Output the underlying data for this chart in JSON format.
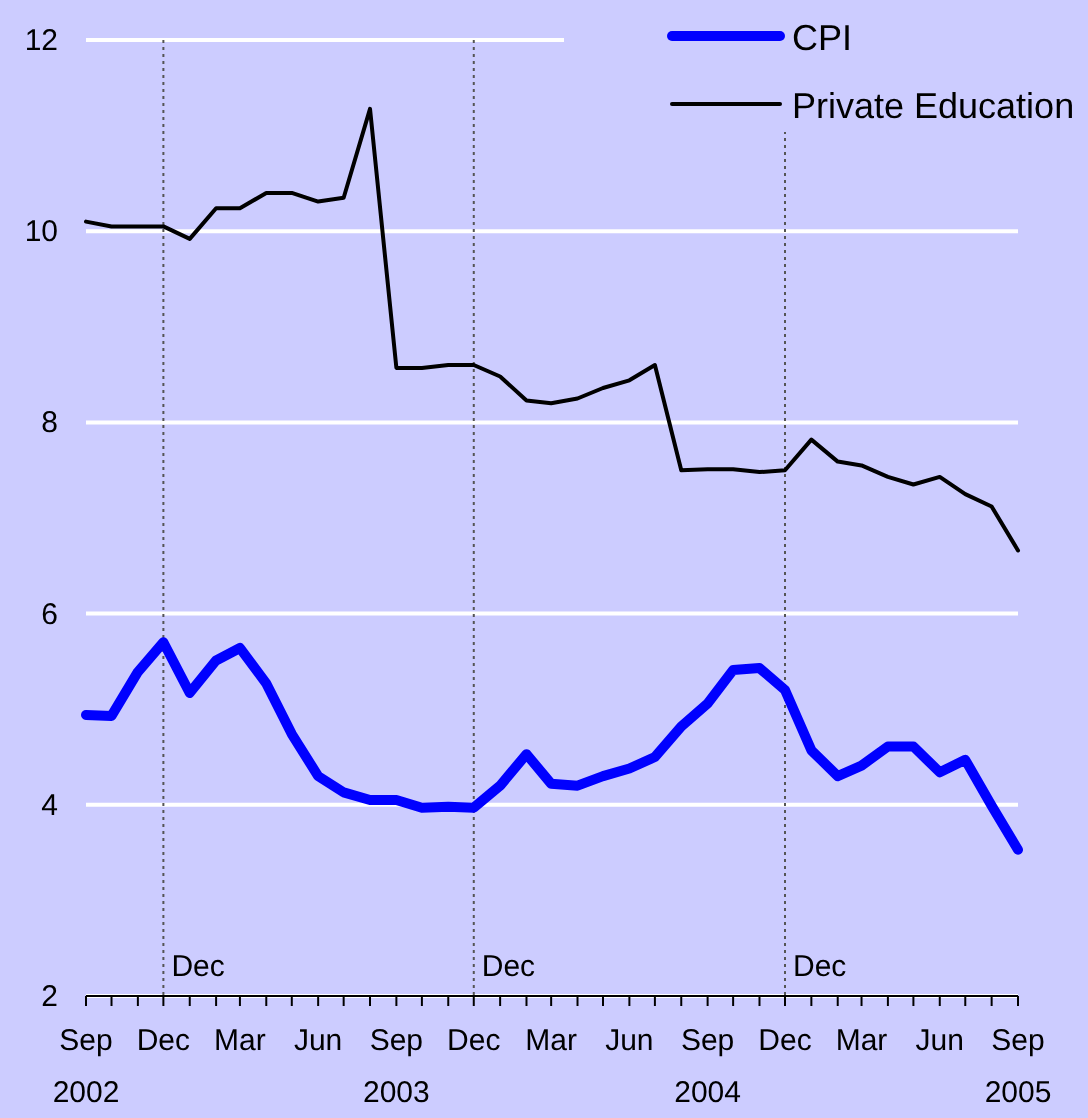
{
  "chart_data": {
    "type": "line",
    "x": [
      "2002-09",
      "2002-10",
      "2002-11",
      "2002-12",
      "2003-01",
      "2003-02",
      "2003-03",
      "2003-04",
      "2003-05",
      "2003-06",
      "2003-07",
      "2003-08",
      "2003-09",
      "2003-10",
      "2003-11",
      "2003-12",
      "2004-01",
      "2004-02",
      "2004-03",
      "2004-04",
      "2004-05",
      "2004-06",
      "2004-07",
      "2004-08",
      "2004-09",
      "2004-10",
      "2004-11",
      "2004-12",
      "2005-01",
      "2005-02",
      "2005-03",
      "2005-04",
      "2005-05",
      "2005-06",
      "2005-07",
      "2005-08",
      "2005-09"
    ],
    "series": [
      {
        "name": "CPI",
        "color": "#0000ff",
        "values": [
          4.94,
          4.93,
          5.39,
          5.7,
          5.17,
          5.51,
          5.64,
          5.27,
          4.74,
          4.3,
          4.13,
          4.05,
          4.05,
          3.97,
          3.98,
          3.97,
          4.2,
          4.53,
          4.22,
          4.2,
          4.3,
          4.38,
          4.5,
          4.82,
          5.06,
          5.41,
          5.43,
          5.2,
          4.57,
          4.3,
          4.41,
          4.61,
          4.61,
          4.34,
          4.47,
          3.99,
          3.53
        ]
      },
      {
        "name": "Private Education",
        "color": "#000000",
        "values": [
          10.1,
          10.05,
          10.05,
          10.05,
          9.92,
          10.24,
          10.24,
          10.4,
          10.4,
          10.31,
          10.35,
          11.28,
          8.57,
          8.57,
          8.6,
          8.6,
          8.48,
          8.23,
          8.2,
          8.25,
          8.36,
          8.44,
          8.6,
          7.5,
          7.51,
          7.51,
          7.48,
          7.5,
          7.82,
          7.59,
          7.55,
          7.43,
          7.35,
          7.43,
          7.25,
          7.12,
          6.66
        ]
      }
    ],
    "xlim": [
      "2002-09",
      "2005-09"
    ],
    "xticks": [
      {
        "value": "2002-09",
        "label": "Sep 2002"
      },
      {
        "value": "2002-10",
        "label": null
      },
      {
        "value": "2002-11",
        "label": null
      },
      {
        "value": "2002-12",
        "label": "Dec"
      },
      {
        "value": "2003-01",
        "label": null
      },
      {
        "value": "2003-02",
        "label": null
      },
      {
        "value": "2003-03",
        "label": "Mar"
      },
      {
        "value": "2003-04",
        "label": null
      },
      {
        "value": "2003-05",
        "label": null
      },
      {
        "value": "2003-06",
        "label": "Jun"
      },
      {
        "value": "2003-07",
        "label": null
      },
      {
        "value": "2003-08",
        "label": null
      },
      {
        "value": "2003-09",
        "label": "Sep 2003"
      },
      {
        "value": "2003-10",
        "label": null
      },
      {
        "value": "2003-11",
        "label": null
      },
      {
        "value": "2003-12",
        "label": "Dec"
      },
      {
        "value": "2004-01",
        "label": null
      },
      {
        "value": "2004-02",
        "label": null
      },
      {
        "value": "2004-03",
        "label": "Mar"
      },
      {
        "value": "2004-04",
        "label": null
      },
      {
        "value": "2004-05",
        "label": null
      },
      {
        "value": "2004-06",
        "label": "Jun"
      },
      {
        "value": "2004-07",
        "label": null
      },
      {
        "value": "2004-08",
        "label": null
      },
      {
        "value": "2004-09",
        "label": "Sep 2004"
      },
      {
        "value": "2004-10",
        "label": null
      },
      {
        "value": "2004-11",
        "label": null
      },
      {
        "value": "2004-12",
        "label": "Dec"
      },
      {
        "value": "2005-01",
        "label": null
      },
      {
        "value": "2005-02",
        "label": null
      },
      {
        "value": "2005-03",
        "label": "Mar"
      },
      {
        "value": "2005-04",
        "label": null
      },
      {
        "value": "2005-05",
        "label": null
      },
      {
        "value": "2005-06",
        "label": "Jun"
      },
      {
        "value": "2005-07",
        "label": null
      },
      {
        "value": "2005-08",
        "label": null
      },
      {
        "value": "2005-09",
        "label": "Sep 2005"
      }
    ],
    "ylim": [
      2,
      12
    ],
    "yticks": [
      2,
      4,
      6,
      8,
      10,
      12
    ],
    "grid": "y",
    "legend": "top right",
    "marker": "none",
    "line_style": "solid",
    "ref_lines": [
      {
        "axis": "x",
        "value": "2002-12",
        "label": "Dec",
        "line_style": "dotted",
        "color": "#555555"
      },
      {
        "axis": "x",
        "value": "2003-12",
        "label": "Dec",
        "line_style": "dotted",
        "color": "#555555"
      },
      {
        "axis": "x",
        "value": "2004-12",
        "label": "Dec",
        "line_style": "dotted",
        "color": "#555555"
      }
    ]
  }
}
